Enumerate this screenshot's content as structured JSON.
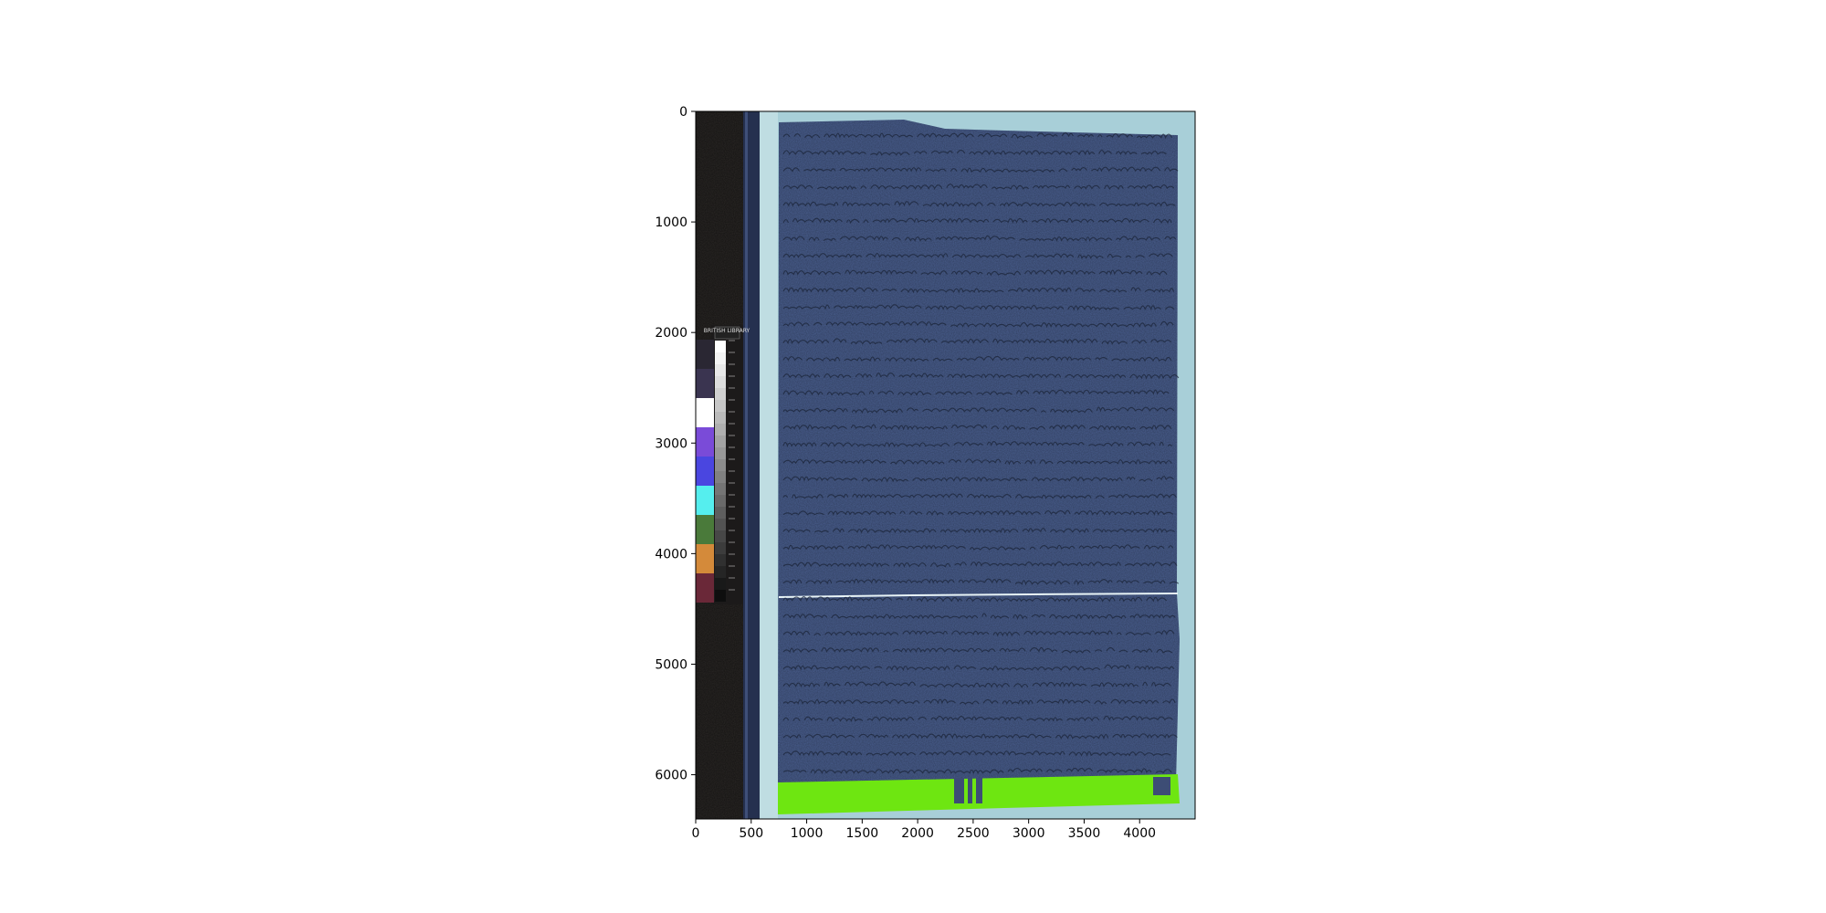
{
  "figure": {
    "x_axis": {
      "ticks": [
        "0",
        "500",
        "1000",
        "1500",
        "2000",
        "2500",
        "3000",
        "3500",
        "4000"
      ]
    },
    "y_axis": {
      "ticks": [
        "0",
        "1000",
        "2000",
        "3000",
        "4000",
        "5000",
        "6000"
      ]
    },
    "image": {
      "subject": "multispectral scan of a handwritten manuscript page",
      "calibration_chart": {
        "label": "BRITISH LIBRARY",
        "swatch_colors": [
          "#2a2733",
          "#3a3450",
          "#ffffff",
          "#7a4bd8",
          "#4a46e0",
          "#55eeee",
          "#4a7a3a",
          "#d48a3a",
          "#6a2838"
        ]
      },
      "page_color": "#4a5f8f",
      "background_color": "#a8cfd8",
      "mask_color": "#6ee611"
    }
  }
}
